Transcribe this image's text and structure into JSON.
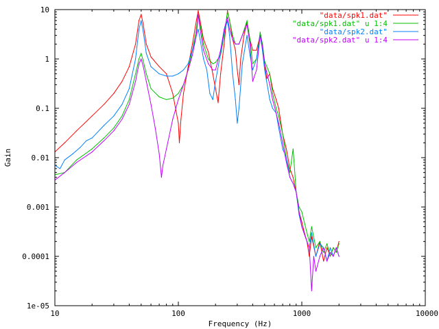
{
  "chart_data": {
    "type": "line",
    "title": "",
    "xlabel": "Frequency (Hz)",
    "ylabel": "Gain",
    "xscale": "log",
    "yscale": "log",
    "xlim": [
      10,
      10000
    ],
    "ylim": [
      1e-05,
      10
    ],
    "xticks": [
      {
        "value": 10,
        "label": "10"
      },
      {
        "value": 100,
        "label": "100"
      },
      {
        "value": 1000,
        "label": "1000"
      },
      {
        "value": 10000,
        "label": "10000"
      }
    ],
    "yticks": [
      {
        "value": 10,
        "label": "10"
      },
      {
        "value": 1,
        "label": "1"
      },
      {
        "value": 0.1,
        "label": "0.1"
      },
      {
        "value": 0.01,
        "label": "0.01"
      },
      {
        "value": 0.001,
        "label": "0.001"
      },
      {
        "value": 0.0001,
        "label": "0.0001"
      },
      {
        "value": 1e-05,
        "label": "1e-05"
      }
    ],
    "grid": false,
    "legend_position": "top-right",
    "series": [
      {
        "name": "\"data/spk1.dat\"",
        "color": "#ff0000",
        "points": [
          [
            10,
            0.013
          ],
          [
            12,
            0.02
          ],
          [
            15,
            0.035
          ],
          [
            20,
            0.07
          ],
          [
            25,
            0.12
          ],
          [
            30,
            0.2
          ],
          [
            35,
            0.35
          ],
          [
            40,
            0.7
          ],
          [
            45,
            2
          ],
          [
            48,
            6
          ],
          [
            50,
            8
          ],
          [
            52,
            5
          ],
          [
            55,
            2
          ],
          [
            60,
            1.1
          ],
          [
            70,
            0.7
          ],
          [
            80,
            0.5
          ],
          [
            90,
            0.2
          ],
          [
            100,
            0.05
          ],
          [
            102,
            0.02
          ],
          [
            105,
            0.06
          ],
          [
            110,
            0.2
          ],
          [
            120,
            0.7
          ],
          [
            130,
            2
          ],
          [
            140,
            6
          ],
          [
            145,
            9.5
          ],
          [
            150,
            6
          ],
          [
            160,
            2.5
          ],
          [
            175,
            1.4
          ],
          [
            190,
            0.5
          ],
          [
            200,
            0.25
          ],
          [
            210,
            0.13
          ],
          [
            220,
            0.5
          ],
          [
            235,
            2
          ],
          [
            250,
            9.5
          ],
          [
            260,
            6
          ],
          [
            275,
            2.5
          ],
          [
            290,
            1.5
          ],
          [
            300,
            0.6
          ],
          [
            310,
            0.3
          ],
          [
            320,
            1
          ],
          [
            340,
            3
          ],
          [
            360,
            5.5
          ],
          [
            380,
            2.5
          ],
          [
            400,
            1.5
          ],
          [
            430,
            1.5
          ],
          [
            460,
            3
          ],
          [
            480,
            2
          ],
          [
            500,
            0.8
          ],
          [
            520,
            0.4
          ],
          [
            550,
            0.5
          ],
          [
            580,
            0.25
          ],
          [
            620,
            0.15
          ],
          [
            650,
            0.1
          ],
          [
            700,
            0.03
          ],
          [
            750,
            0.015
          ],
          [
            800,
            0.006
          ],
          [
            850,
            0.004
          ],
          [
            900,
            0.002
          ],
          [
            950,
            0.0008
          ],
          [
            1000,
            0.0005
          ],
          [
            1050,
            0.0003
          ],
          [
            1100,
            0.0002
          ],
          [
            1150,
            0.0001
          ],
          [
            1200,
            0.00025
          ],
          [
            1300,
            0.0001
          ],
          [
            1400,
            0.0002
          ],
          [
            1500,
            8e-05
          ],
          [
            1600,
            0.00015
          ],
          [
            1700,
            0.0001
          ],
          [
            1800,
            0.00015
          ],
          [
            1900,
            0.00012
          ],
          [
            2000,
            0.0002
          ]
        ]
      },
      {
        "name": "\"data/spk1.dat\" u 1:4",
        "color": "#00c000",
        "points": [
          [
            10,
            0.0045
          ],
          [
            12,
            0.005
          ],
          [
            15,
            0.009
          ],
          [
            20,
            0.015
          ],
          [
            25,
            0.025
          ],
          [
            30,
            0.04
          ],
          [
            35,
            0.07
          ],
          [
            40,
            0.15
          ],
          [
            45,
            0.5
          ],
          [
            48,
            1
          ],
          [
            50,
            1.3
          ],
          [
            52,
            0.9
          ],
          [
            55,
            0.5
          ],
          [
            60,
            0.25
          ],
          [
            70,
            0.17
          ],
          [
            80,
            0.15
          ],
          [
            90,
            0.16
          ],
          [
            100,
            0.2
          ],
          [
            110,
            0.3
          ],
          [
            120,
            0.6
          ],
          [
            130,
            1.5
          ],
          [
            140,
            4
          ],
          [
            145,
            8
          ],
          [
            150,
            5
          ],
          [
            160,
            2
          ],
          [
            175,
            1
          ],
          [
            190,
            0.8
          ],
          [
            200,
            0.85
          ],
          [
            220,
            1.2
          ],
          [
            235,
            3
          ],
          [
            250,
            9
          ],
          [
            260,
            6
          ],
          [
            275,
            3
          ],
          [
            290,
            2
          ],
          [
            310,
            2
          ],
          [
            330,
            3
          ],
          [
            360,
            6
          ],
          [
            380,
            2.5
          ],
          [
            400,
            0.8
          ],
          [
            430,
            1
          ],
          [
            460,
            3.5
          ],
          [
            480,
            2
          ],
          [
            500,
            0.9
          ],
          [
            550,
            0.5
          ],
          [
            580,
            0.2
          ],
          [
            620,
            0.1
          ],
          [
            650,
            0.07
          ],
          [
            700,
            0.03
          ],
          [
            750,
            0.01
          ],
          [
            800,
            0.005
          ],
          [
            850,
            0.015
          ],
          [
            900,
            0.002
          ],
          [
            950,
            0.001
          ],
          [
            1000,
            0.0008
          ],
          [
            1100,
            0.0003
          ],
          [
            1150,
            0.0002
          ],
          [
            1200,
            0.0004
          ],
          [
            1300,
            0.00015
          ],
          [
            1400,
            0.0002
          ],
          [
            1500,
            0.00012
          ],
          [
            1600,
            0.00018
          ],
          [
            1700,
            0.0001
          ],
          [
            1800,
            0.00015
          ],
          [
            1900,
            0.00012
          ],
          [
            2000,
            0.00018
          ]
        ]
      },
      {
        "name": "\"data/spk2.dat\"",
        "color": "#0080ff",
        "points": [
          [
            10,
            0.007
          ],
          [
            11,
            0.006
          ],
          [
            12,
            0.009
          ],
          [
            14,
            0.012
          ],
          [
            16,
            0.016
          ],
          [
            18,
            0.022
          ],
          [
            20,
            0.025
          ],
          [
            25,
            0.045
          ],
          [
            30,
            0.07
          ],
          [
            35,
            0.12
          ],
          [
            40,
            0.25
          ],
          [
            45,
            1
          ],
          [
            48,
            4
          ],
          [
            50,
            6
          ],
          [
            52,
            3.5
          ],
          [
            55,
            1.3
          ],
          [
            60,
            0.7
          ],
          [
            70,
            0.5
          ],
          [
            80,
            0.45
          ],
          [
            90,
            0.45
          ],
          [
            100,
            0.5
          ],
          [
            110,
            0.6
          ],
          [
            120,
            0.8
          ],
          [
            130,
            1.5
          ],
          [
            140,
            3
          ],
          [
            145,
            4
          ],
          [
            150,
            2.5
          ],
          [
            160,
            1
          ],
          [
            170,
            0.6
          ],
          [
            180,
            0.2
          ],
          [
            190,
            0.15
          ],
          [
            200,
            0.35
          ],
          [
            220,
            1.3
          ],
          [
            235,
            3.5
          ],
          [
            250,
            6
          ],
          [
            260,
            3
          ],
          [
            275,
            0.5
          ],
          [
            290,
            0.15
          ],
          [
            300,
            0.05
          ],
          [
            310,
            0.1
          ],
          [
            330,
            0.8
          ],
          [
            360,
            3
          ],
          [
            380,
            1.2
          ],
          [
            400,
            0.6
          ],
          [
            430,
            1
          ],
          [
            460,
            3
          ],
          [
            480,
            1.5
          ],
          [
            500,
            0.6
          ],
          [
            550,
            0.15
          ],
          [
            580,
            0.1
          ],
          [
            620,
            0.08
          ],
          [
            650,
            0.04
          ],
          [
            700,
            0.015
          ],
          [
            750,
            0.01
          ],
          [
            800,
            0.004
          ],
          [
            850,
            0.003
          ],
          [
            900,
            0.002
          ],
          [
            950,
            0.0007
          ],
          [
            1000,
            0.0004
          ],
          [
            1100,
            0.0002
          ],
          [
            1150,
            0.00015
          ],
          [
            1200,
            0.0003
          ],
          [
            1300,
            0.0001
          ],
          [
            1400,
            0.00018
          ],
          [
            1500,
            0.00015
          ],
          [
            1600,
            8e-05
          ],
          [
            1700,
            0.00015
          ],
          [
            1800,
            0.0001
          ],
          [
            1900,
            0.00015
          ],
          [
            2000,
            0.0001
          ]
        ]
      },
      {
        "name": "\"data/spk2.dat\" u 1:4",
        "color": "#c000ff",
        "points": [
          [
            10,
            0.0035
          ],
          [
            12,
            0.005
          ],
          [
            15,
            0.008
          ],
          [
            20,
            0.013
          ],
          [
            25,
            0.022
          ],
          [
            30,
            0.035
          ],
          [
            35,
            0.06
          ],
          [
            40,
            0.12
          ],
          [
            45,
            0.35
          ],
          [
            48,
            0.8
          ],
          [
            50,
            1
          ],
          [
            52,
            0.7
          ],
          [
            55,
            0.35
          ],
          [
            60,
            0.12
          ],
          [
            65,
            0.04
          ],
          [
            70,
            0.012
          ],
          [
            73,
            0.004
          ],
          [
            75,
            0.007
          ],
          [
            80,
            0.015
          ],
          [
            90,
            0.06
          ],
          [
            100,
            0.15
          ],
          [
            110,
            0.3
          ],
          [
            120,
            0.6
          ],
          [
            130,
            1.2
          ],
          [
            140,
            3
          ],
          [
            145,
            8
          ],
          [
            150,
            4
          ],
          [
            160,
            1.5
          ],
          [
            175,
            0.8
          ],
          [
            190,
            0.6
          ],
          [
            200,
            0.6
          ],
          [
            220,
            1.5
          ],
          [
            235,
            4
          ],
          [
            250,
            7
          ],
          [
            260,
            4
          ],
          [
            275,
            2.5
          ],
          [
            290,
            2
          ],
          [
            310,
            2
          ],
          [
            330,
            3
          ],
          [
            360,
            5
          ],
          [
            380,
            2
          ],
          [
            400,
            0.35
          ],
          [
            430,
            0.6
          ],
          [
            460,
            3
          ],
          [
            480,
            1.8
          ],
          [
            500,
            0.8
          ],
          [
            550,
            0.3
          ],
          [
            580,
            0.15
          ],
          [
            620,
            0.08
          ],
          [
            650,
            0.05
          ],
          [
            700,
            0.02
          ],
          [
            750,
            0.008
          ],
          [
            800,
            0.004
          ],
          [
            850,
            0.003
          ],
          [
            900,
            0.002
          ],
          [
            950,
            0.0008
          ],
          [
            1000,
            0.0004
          ],
          [
            1100,
            0.0002
          ],
          [
            1150,
            0.00015
          ],
          [
            1200,
            2e-05
          ],
          [
            1250,
            0.0001
          ],
          [
            1300,
            5e-05
          ],
          [
            1400,
            0.0001
          ],
          [
            1500,
            0.00015
          ],
          [
            1600,
            8e-05
          ],
          [
            1700,
            0.00012
          ],
          [
            1800,
            0.0001
          ],
          [
            1900,
            0.00015
          ],
          [
            2000,
            0.0001
          ]
        ]
      }
    ]
  }
}
